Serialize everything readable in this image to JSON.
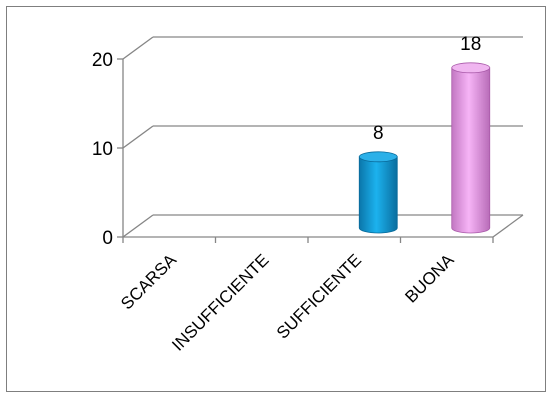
{
  "chart_data": {
    "type": "bar",
    "categories": [
      "SCARSA",
      "INSUFFICIENTE",
      "SUFFICIENTE",
      "BUONA"
    ],
    "values": [
      0,
      0,
      8,
      18
    ],
    "data_labels": [
      "",
      "",
      "8",
      "18"
    ],
    "ylim": [
      0,
      20
    ],
    "yticks": [
      "0",
      "10",
      "20"
    ],
    "grid": true,
    "legend": "none",
    "colors": [
      "#1aa3df",
      "#1aa3df",
      "#1aa3df",
      "#e89be8"
    ]
  }
}
